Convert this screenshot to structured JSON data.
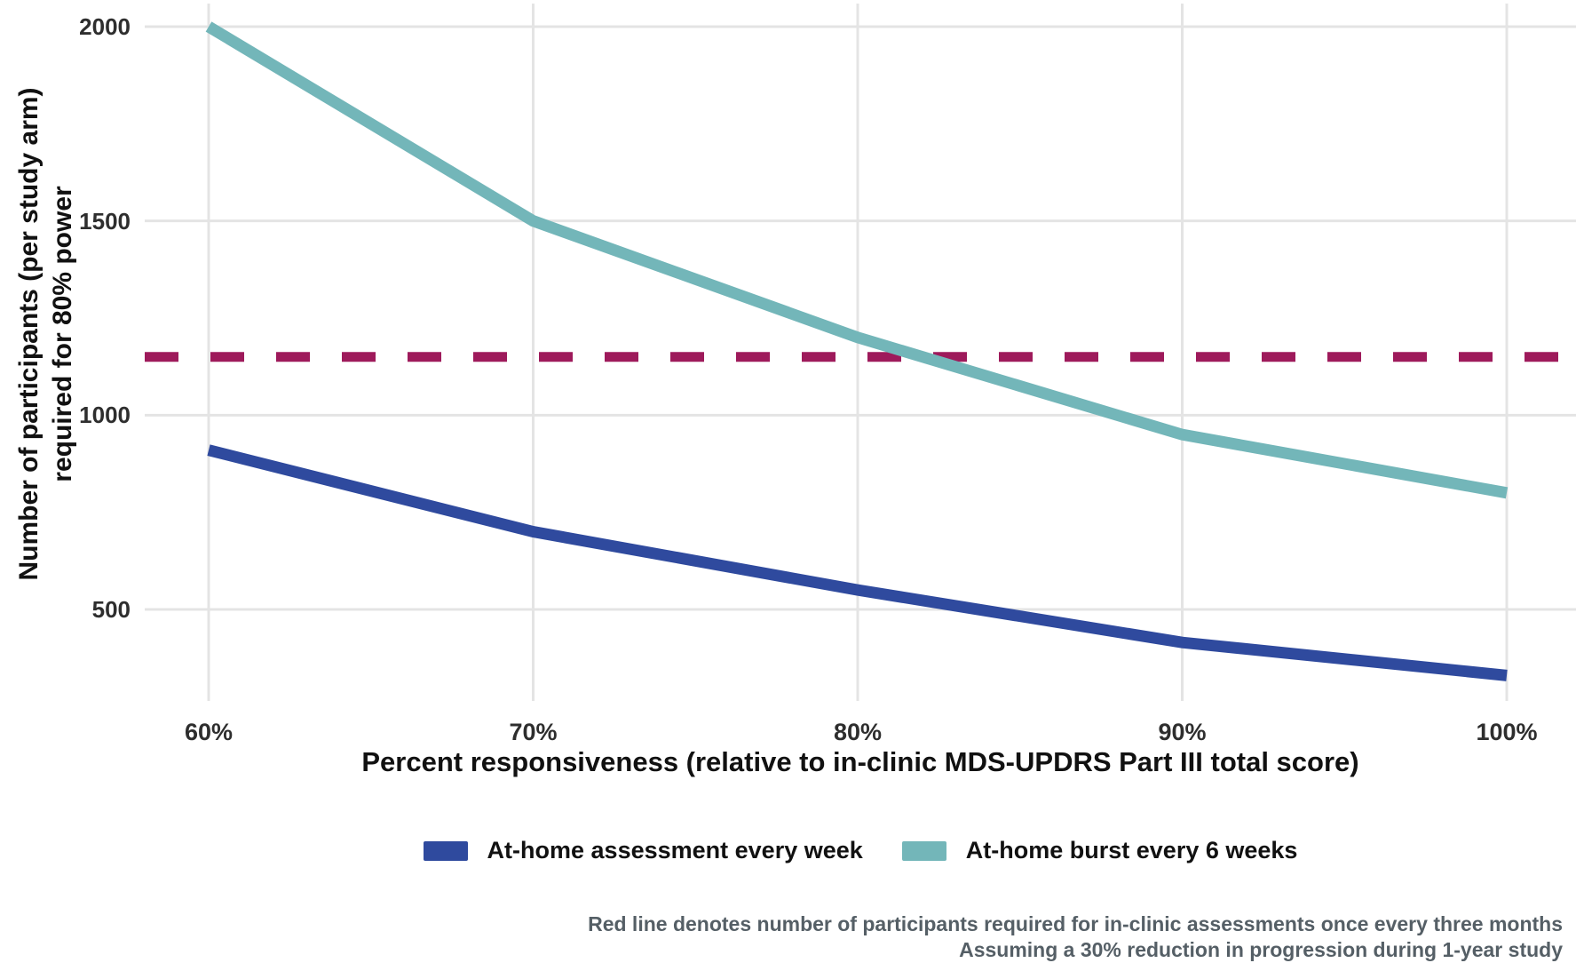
{
  "figure_type": "line-chart",
  "footnote": {
    "line1": "Red line denotes number of participants required for in-clinic assessments once every three months",
    "line2": "Assuming a 30% reduction in progression during 1-year study"
  },
  "colors": {
    "weekly_line": "#2f4a9e",
    "burst_line": "#73b6b9",
    "reference_line": "#9e1a5b",
    "gridline": "#e4e4e4",
    "axis_text": "#2e2e2e",
    "title_text": "#111111",
    "footnote_text": "#555f66",
    "background": "#ffffff"
  },
  "chart_data": {
    "type": "line",
    "title": "",
    "xlabel": "Percent responsiveness (relative to in-clinic MDS-UPDRS Part III total score)",
    "ylabel": "Number of participants (per study arm) required for 80% power",
    "ylabel_line1": "Number of participants (per study arm)",
    "ylabel_line2": "required for 80% power",
    "x_ticks": [
      60,
      70,
      80,
      90,
      100
    ],
    "x_tick_labels": [
      "60%",
      "70%",
      "80%",
      "90%",
      "100%"
    ],
    "y_ticks": [
      500,
      1000,
      1500,
      2000
    ],
    "y_tick_labels": [
      "500",
      "1000",
      "1500",
      "2000"
    ],
    "xlim": [
      58,
      102
    ],
    "ylim": [
      250,
      2060
    ],
    "grid": true,
    "legend_position": "bottom",
    "series": [
      {
        "name": "At-home assessment every week",
        "color": "#2f4a9e",
        "x": [
          60,
          70,
          80,
          90,
          100
        ],
        "values": [
          910,
          700,
          550,
          415,
          330
        ]
      },
      {
        "name": "At-home burst every 6 weeks",
        "color": "#73b6b9",
        "x": [
          60,
          70,
          80,
          90,
          100
        ],
        "values": [
          2000,
          1500,
          1200,
          950,
          800
        ]
      }
    ],
    "reference_line": {
      "value": 1150,
      "style": "dashed",
      "color": "#9e1a5b",
      "meaning": "number of participants required for in-clinic assessments once every three months"
    }
  }
}
